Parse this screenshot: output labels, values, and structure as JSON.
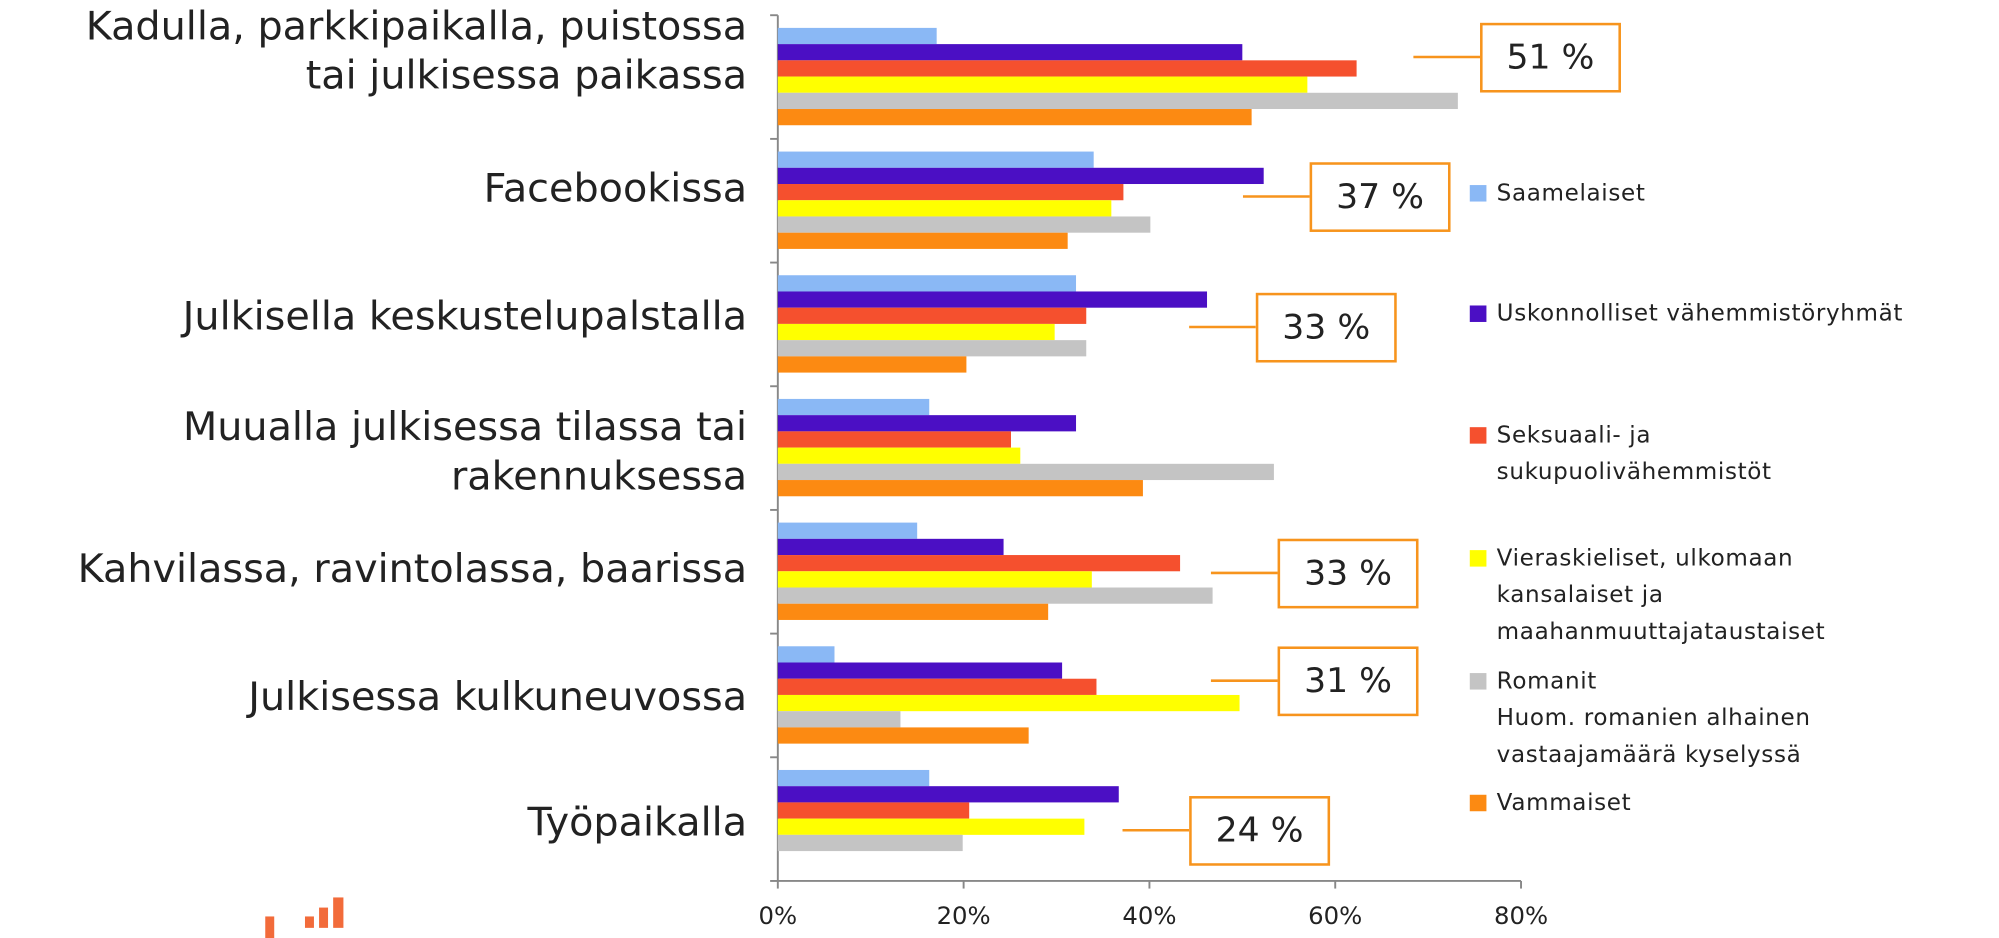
{
  "chart_data": {
    "type": "bar",
    "orientation": "horizontal",
    "categories": [
      "Kadulla, parkkipaikalla, puistossa\ntai julkisessa paikassa",
      "Facebookissa",
      "Julkisella keskustelupalstalla",
      "Muualla julkisessa tilassa tai\nrakennuksessa",
      "Kahvilassa, ravintolassa, baarissa",
      "Julkisessa kulkuneuvossa",
      "Työpaikalla"
    ],
    "series": [
      {
        "name": "Saamelaiset",
        "color": "#8ab8f5",
        "values": [
          17.1,
          34,
          32.1,
          16.3,
          15,
          6.1,
          16.3
        ]
      },
      {
        "name": "Uskonnolliset vähemmistöryhmät",
        "color": "#4b0fc4",
        "values": [
          50,
          52.3,
          46.2,
          32.1,
          24.3,
          30.6,
          36.7
        ]
      },
      {
        "name": "Seksuaali- ja\nsukupuolivähemmistöt",
        "color": "#f5502e",
        "values": [
          62.3,
          37.2,
          33.2,
          25.1,
          43.3,
          34.3,
          20.6
        ]
      },
      {
        "name": "Vieraskieliset, ulkomaan\nkansalaiset ja\nmaahanmuuttajataustaiset",
        "color": "#ffff00",
        "values": [
          57,
          35.9,
          29.8,
          26.1,
          33.8,
          49.7,
          33
        ]
      },
      {
        "name": "Romanit",
        "note": "Huom. romanien alhainen\nvastaajamäärä kyselyssä",
        "color": "#c4c4c4",
        "values": [
          73.2,
          40.1,
          33.2,
          53.4,
          46.8,
          13.2,
          19.9
        ]
      },
      {
        "name": "Vammaiset",
        "color": "#fc8a12",
        "values": [
          51,
          31.2,
          20.3,
          39.3,
          29.1,
          27,
          null
        ]
      }
    ],
    "annotations": [
      "51 %",
      "37 %",
      "33 %",
      null,
      "33 %",
      "31 %",
      "24 %"
    ],
    "xlim": [
      0,
      80
    ],
    "xticks": [
      {
        "value": 0,
        "label": "0%"
      },
      {
        "value": 20,
        "label": "20%"
      },
      {
        "value": 40,
        "label": "40%"
      },
      {
        "value": 60,
        "label": "60%"
      },
      {
        "value": 80,
        "label": "80%"
      }
    ]
  }
}
